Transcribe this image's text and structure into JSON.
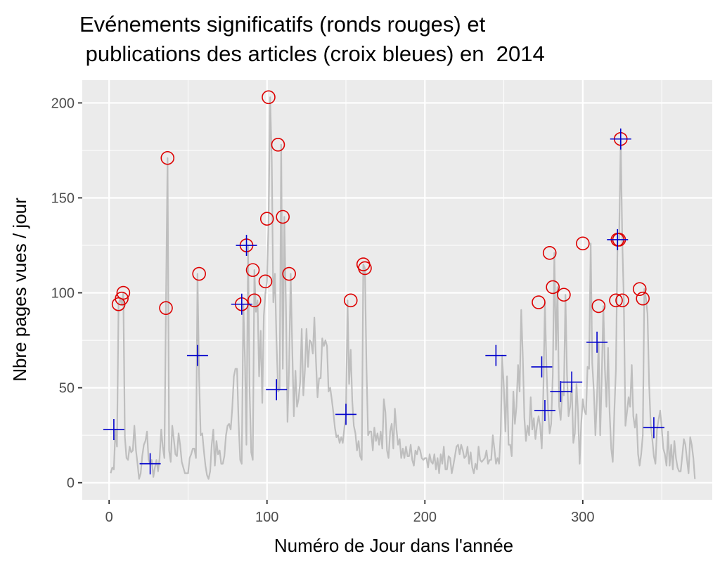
{
  "chart_data": {
    "type": "scatter",
    "title_lines": [
      "Evénements significatifs (ronds rouges) et",
      " publications des articles (croix bleues) en  2014"
    ],
    "xlabel": "Numéro de Jour dans l'année",
    "ylabel": "Nbre pages vues / jour",
    "xlim": [
      -17,
      382
    ],
    "ylim": [
      -9,
      212
    ],
    "x_ticks": [
      0,
      100,
      200,
      300
    ],
    "y_ticks": [
      0,
      50,
      100,
      150,
      200
    ],
    "grid": true,
    "legend": "none",
    "colors": {
      "panel": "#ebebeb",
      "grid": "#ffffff",
      "line": "#bebebe",
      "events": "#dd0000",
      "articles": "#0000cc"
    },
    "series": [
      {
        "kind": "line",
        "values": [
          5,
          8,
          7,
          28,
          19,
          94,
          97,
          94,
          100,
          24,
          13,
          12,
          19,
          16,
          17,
          30,
          17,
          10,
          2,
          5,
          14,
          20,
          22,
          27,
          12,
          10,
          12,
          3,
          8,
          12,
          6,
          13,
          28,
          19,
          13,
          92,
          171,
          17,
          11,
          30,
          23,
          15,
          14,
          26,
          20,
          11,
          8,
          5,
          5,
          5,
          13,
          15,
          18,
          18,
          13,
          110,
          55,
          25,
          26,
          17,
          9,
          4,
          2,
          6,
          20,
          28,
          9,
          22,
          15,
          17,
          10,
          10,
          14,
          25,
          30,
          31,
          28,
          39,
          56,
          60,
          60,
          32,
          12,
          10,
          94,
          66,
          20,
          125,
          48,
          16,
          12,
          112,
          90,
          96,
          56,
          80,
          42,
          88,
          100,
          106,
          139,
          203,
          170,
          95,
          110,
          75,
          48,
          49,
          178,
          60,
          140,
          92,
          32,
          62,
          110,
          70,
          35,
          59,
          40,
          44,
          53,
          81,
          46,
          59,
          81,
          61,
          75,
          74,
          68,
          87,
          64,
          45,
          55,
          55,
          76,
          72,
          75,
          72,
          48,
          50,
          44,
          37,
          29,
          24,
          25,
          21,
          24,
          21,
          29,
          36,
          96,
          52,
          70,
          43,
          30,
          26,
          17,
          22,
          14,
          12,
          115,
          113,
          61,
          25,
          27,
          27,
          17,
          29,
          22,
          26,
          20,
          27,
          18,
          44,
          37,
          17,
          13,
          27,
          31,
          18,
          39,
          28,
          20,
          23,
          13,
          18,
          13,
          19,
          14,
          14,
          20,
          12,
          9,
          17,
          15,
          19,
          17,
          13,
          12,
          13,
          13,
          8,
          15,
          11,
          10,
          15,
          7,
          13,
          5,
          15,
          10,
          19,
          7,
          7,
          14,
          13,
          5,
          9,
          14,
          19,
          20,
          15,
          20,
          17,
          13,
          14,
          19,
          10,
          16,
          8,
          5,
          10,
          7,
          19,
          12,
          11,
          12,
          13,
          17,
          10,
          12,
          12,
          25,
          18,
          10,
          13,
          10,
          26,
          67,
          50,
          27,
          56,
          20,
          20,
          14,
          48,
          31,
          40,
          62,
          48,
          91,
          67,
          34,
          22,
          30,
          25,
          45,
          28,
          34,
          23,
          30,
          35,
          30,
          18,
          47,
          95,
          61,
          38,
          26,
          31,
          57,
          121,
          70,
          103,
          40,
          33,
          48,
          46,
          99,
          57,
          35,
          40,
          53,
          21,
          26,
          52,
          37,
          10,
          31,
          44,
          38,
          36,
          61,
          60,
          126,
          63,
          48,
          25,
          45,
          74,
          25,
          55,
          93,
          60,
          40,
          71,
          37,
          18,
          11,
          38,
          60,
          128,
          128,
          181,
          128,
          96,
          30,
          37,
          45,
          40,
          62,
          35,
          29,
          36,
          15,
          9,
          15,
          25,
          102,
          97,
          89,
          52,
          31,
          23,
          14,
          10,
          28,
          33,
          38,
          29,
          18,
          15,
          9,
          27,
          9,
          20,
          7,
          22,
          13,
          8,
          6,
          6,
          14,
          23,
          20,
          12,
          5,
          24,
          20,
          13,
          2
        ]
      },
      {
        "kind": "points",
        "name": "Evénements significatifs",
        "marker": "circle",
        "x": [
          6,
          8,
          9,
          36,
          37,
          57,
          84,
          87,
          91,
          92,
          99,
          100,
          101,
          107,
          110,
          114,
          153,
          161,
          162,
          272,
          279,
          281,
          288,
          300,
          310,
          321,
          322,
          323,
          324,
          325,
          336,
          338
        ],
        "y": [
          94,
          97,
          100,
          92,
          171,
          110,
          94,
          125,
          112,
          96,
          106,
          139,
          203,
          178,
          140,
          110,
          96,
          115,
          113,
          95,
          121,
          103,
          99,
          126,
          93,
          96,
          128,
          128,
          181,
          96,
          102,
          97
        ]
      },
      {
        "kind": "points",
        "name": "Publications des articles",
        "marker": "plus",
        "x": [
          3,
          26,
          56,
          84,
          87,
          106,
          150,
          245,
          274,
          276,
          286,
          293,
          309,
          322,
          324,
          345
        ],
        "y": [
          28,
          10,
          67,
          94,
          125,
          49,
          36,
          67,
          61,
          38,
          48,
          53,
          74,
          128,
          181,
          29
        ]
      }
    ]
  }
}
